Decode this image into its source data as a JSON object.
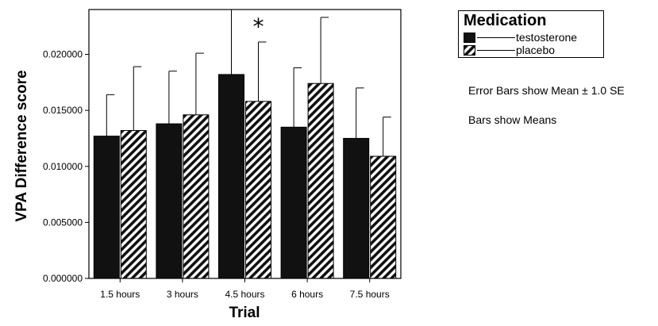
{
  "chart_data": {
    "type": "bar",
    "xlabel": "Trial",
    "ylabel": "VPA Difference score",
    "categories": [
      "1.5 hours",
      "3 hours",
      "4.5 hours",
      "6 hours",
      "7.5 hours"
    ],
    "ylim": [
      0,
      0.024
    ],
    "yticks": [
      "0.000000",
      "0.005000",
      "0.010000",
      "0.015000",
      "0.020000"
    ],
    "ytick_values": [
      0,
      0.005,
      0.01,
      0.015,
      0.02
    ],
    "legend_title": "Medication",
    "legend_position": "top-right",
    "series": [
      {
        "name": "testosterone",
        "fill": "solid-black",
        "values": [
          0.0127,
          0.0138,
          0.0182,
          0.0135,
          0.0125
        ],
        "error_upper": [
          0.0164,
          0.0185,
          0.024,
          0.0188,
          0.017
        ]
      },
      {
        "name": "placebo",
        "fill": "diagonal-hatch",
        "values": [
          0.0132,
          0.0146,
          0.0158,
          0.0174,
          0.0109
        ],
        "error_upper": [
          0.0189,
          0.0201,
          0.0211,
          0.0233,
          0.0144
        ]
      }
    ],
    "annotations": [
      {
        "text": "*",
        "category": "4.5 hours"
      }
    ],
    "notes": [
      "Error Bars show Mean ± 1.0 SE",
      "Bars show Means"
    ],
    "colors": {
      "testosterone": "#111111",
      "hatch_stripe": "#111111",
      "hatch_bg": "#ffffff"
    },
    "grid": false
  }
}
